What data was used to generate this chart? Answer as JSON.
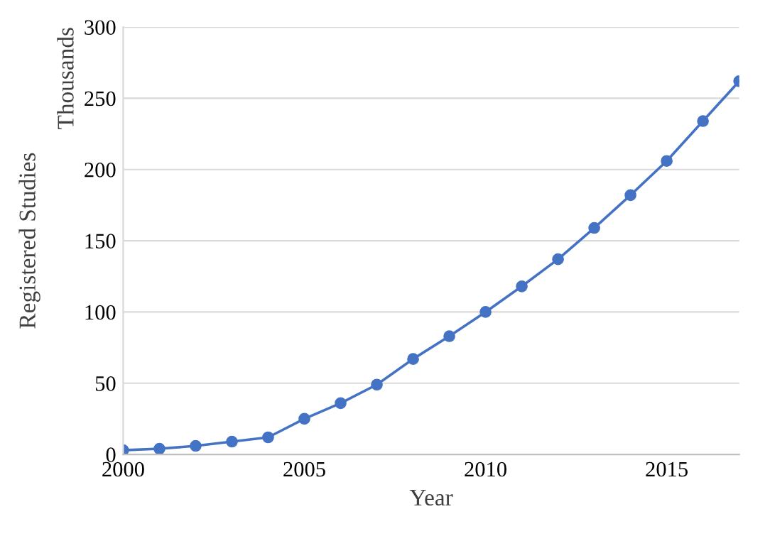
{
  "chart_data": {
    "type": "line",
    "xlabel": "Year",
    "ylabel": "Registered Studies",
    "annotations": [
      "Thousands"
    ],
    "x": [
      2000,
      2001,
      2002,
      2003,
      2004,
      2005,
      2006,
      2007,
      2008,
      2009,
      2010,
      2011,
      2012,
      2013,
      2014,
      2015,
      2016,
      2017
    ],
    "series": [
      {
        "color": "#4472c4",
        "values": [
          3,
          4,
          6,
          9,
          12,
          25,
          36,
          49,
          67,
          83,
          100,
          118,
          137,
          159,
          182,
          206,
          234,
          262
        ]
      }
    ],
    "xlim": [
      2000,
      2017
    ],
    "xticks": [
      2000,
      2005,
      2010,
      2015
    ],
    "ylim": [
      0,
      300
    ],
    "yticks": [
      0,
      50,
      100,
      150,
      200,
      250,
      300
    ],
    "grid": "y",
    "marker": "circle",
    "line_style": "solid",
    "legend": false
  }
}
